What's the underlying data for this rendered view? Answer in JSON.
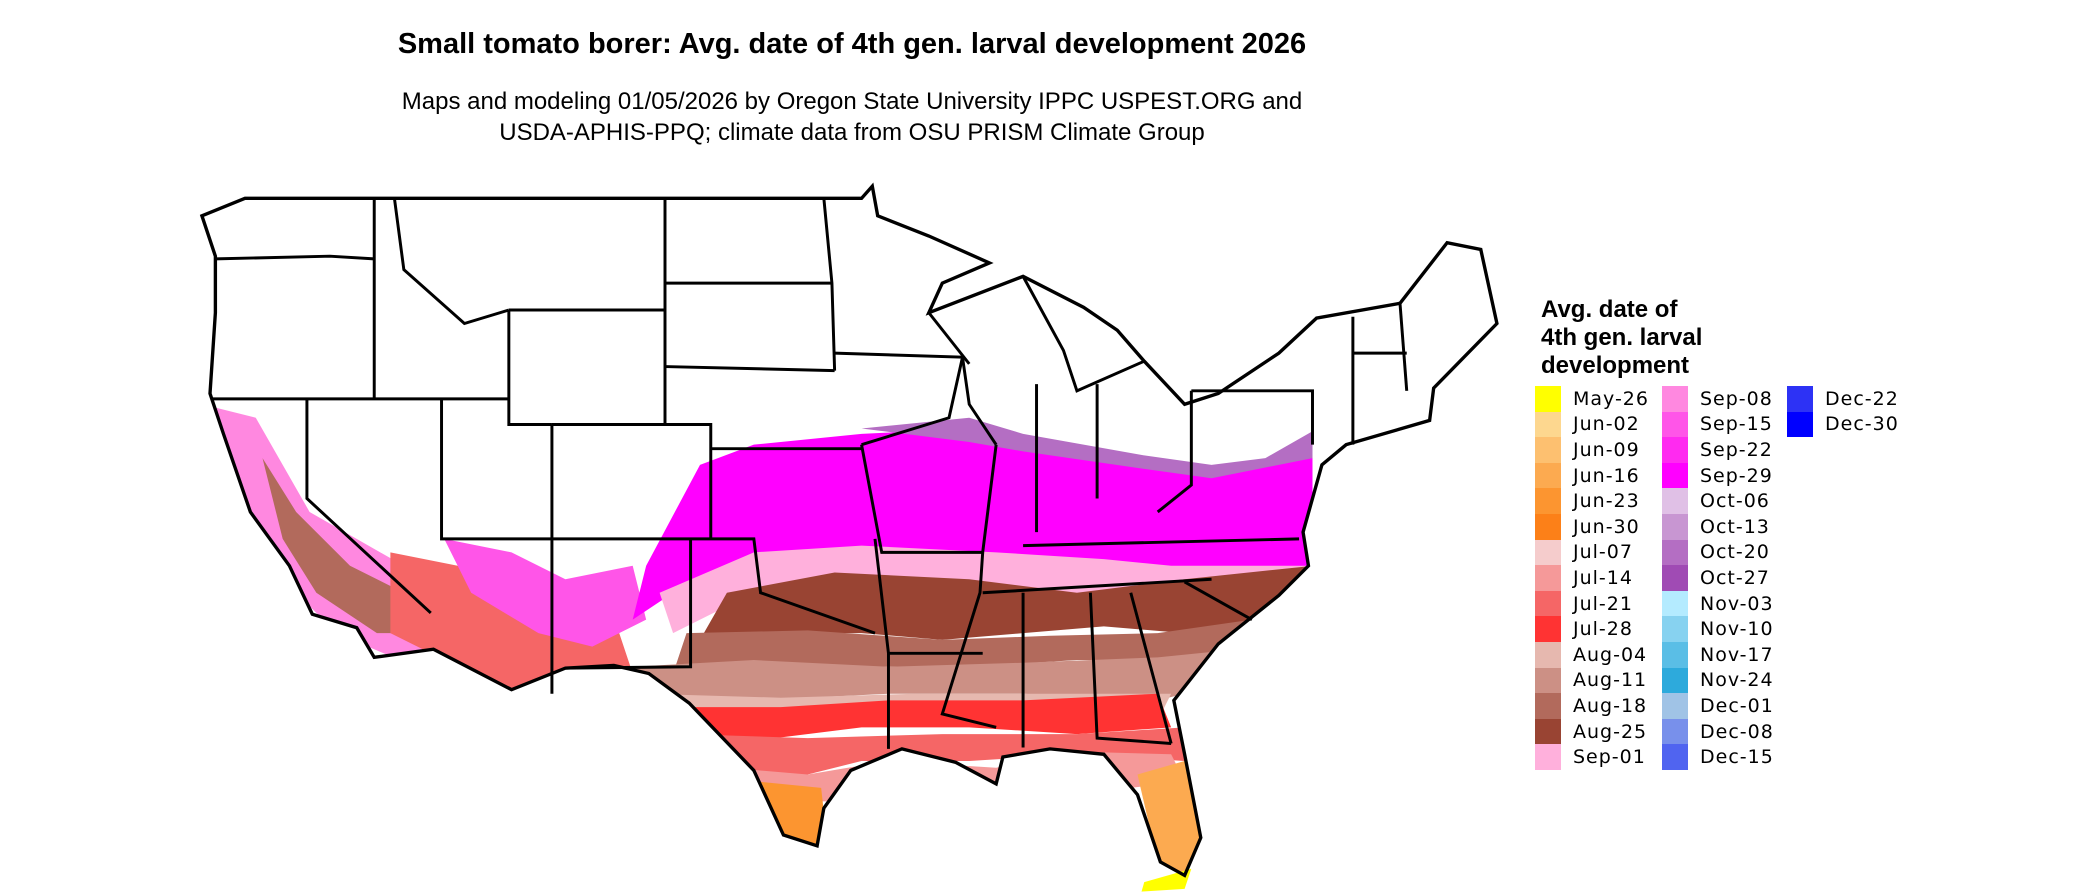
{
  "title": "Small tomato borer: Avg. date of 4th gen. larval development 2026",
  "subtitle": [
    "Maps and modeling 01/05/2026 by Oregon State University IPPC USPEST.ORG and",
    "USDA-APHIS-PPQ; climate data from OSU PRISM Climate Group"
  ],
  "legend": {
    "title": [
      "Avg. date of",
      "4th gen. larval",
      "development"
    ],
    "items": [
      {
        "label": "May-26",
        "color": "#FFFF00"
      },
      {
        "label": "Jun-02",
        "color": "#FDD78F"
      },
      {
        "label": "Jun-09",
        "color": "#FDC070"
      },
      {
        "label": "Jun-16",
        "color": "#FCAA50"
      },
      {
        "label": "Jun-23",
        "color": "#FC9530"
      },
      {
        "label": "Jun-30",
        "color": "#FC8018"
      },
      {
        "label": "Jul-07",
        "color": "#F5CCCC"
      },
      {
        "label": "Jul-14",
        "color": "#F59999"
      },
      {
        "label": "Jul-21",
        "color": "#F56666"
      },
      {
        "label": "Jul-28",
        "color": "#FF3333"
      },
      {
        "label": "Aug-04",
        "color": "#E6B8AF"
      },
      {
        "label": "Aug-11",
        "color": "#CC9085"
      },
      {
        "label": "Aug-18",
        "color": "#B26A5C"
      },
      {
        "label": "Aug-25",
        "color": "#994433"
      },
      {
        "label": "Sep-01",
        "color": "#FFB0DC"
      },
      {
        "label": "Sep-08",
        "color": "#FF88E0"
      },
      {
        "label": "Sep-15",
        "color": "#FF55E8"
      },
      {
        "label": "Sep-22",
        "color": "#FF2AF0"
      },
      {
        "label": "Sep-29",
        "color": "#FF00FF"
      },
      {
        "label": "Oct-06",
        "color": "#E0C0E6"
      },
      {
        "label": "Oct-13",
        "color": "#C896D2"
      },
      {
        "label": "Oct-20",
        "color": "#B46EC3"
      },
      {
        "label": "Oct-27",
        "color": "#A04BB4"
      },
      {
        "label": "Nov-03",
        "color": "#B4EBFF"
      },
      {
        "label": "Nov-10",
        "color": "#87D2F0"
      },
      {
        "label": "Nov-17",
        "color": "#5ABEE6"
      },
      {
        "label": "Nov-24",
        "color": "#2DAADC"
      },
      {
        "label": "Dec-01",
        "color": "#A0C3E6"
      },
      {
        "label": "Dec-08",
        "color": "#7890EB"
      },
      {
        "label": "Dec-15",
        "color": "#5064F0"
      },
      {
        "label": "Dec-22",
        "color": "#2D32F5"
      },
      {
        "label": "Dec-30",
        "color": "#0000FF"
      }
    ]
  },
  "map": {
    "region": "contiguous United States",
    "background": "#FFFFFF",
    "border_color": "#000000"
  }
}
